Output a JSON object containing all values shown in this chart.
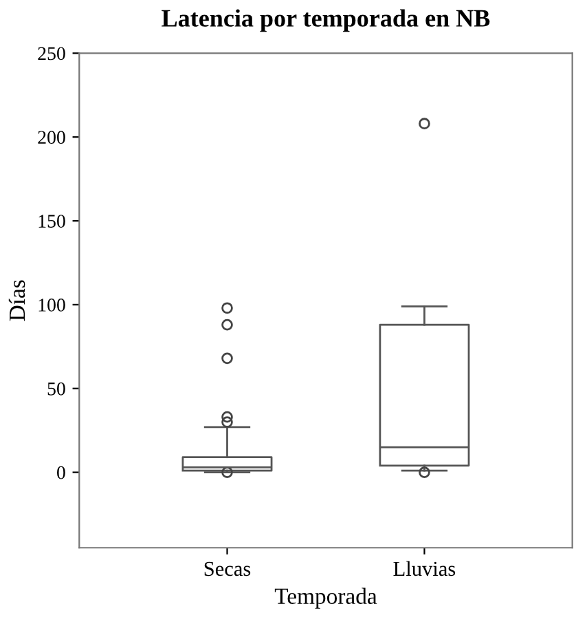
{
  "chart_data": {
    "type": "box",
    "title": "Latencia por temporada en NB",
    "xlabel": "Temporada",
    "ylabel": "Días",
    "categories": [
      "Secas",
      "Lluvias"
    ],
    "boxes": [
      {
        "low": 0,
        "q1": 1,
        "median": 3,
        "q3": 9,
        "high": 27,
        "outliers": [
          98,
          88,
          68,
          33,
          30,
          0
        ]
      },
      {
        "low": 1,
        "q1": 4,
        "median": 15,
        "q3": 88,
        "high": 99,
        "outliers": [
          208,
          0
        ]
      }
    ],
    "ylim": [
      -45,
      250
    ],
    "yticks": [
      0,
      50,
      100,
      150,
      200,
      250
    ],
    "grid": false
  }
}
